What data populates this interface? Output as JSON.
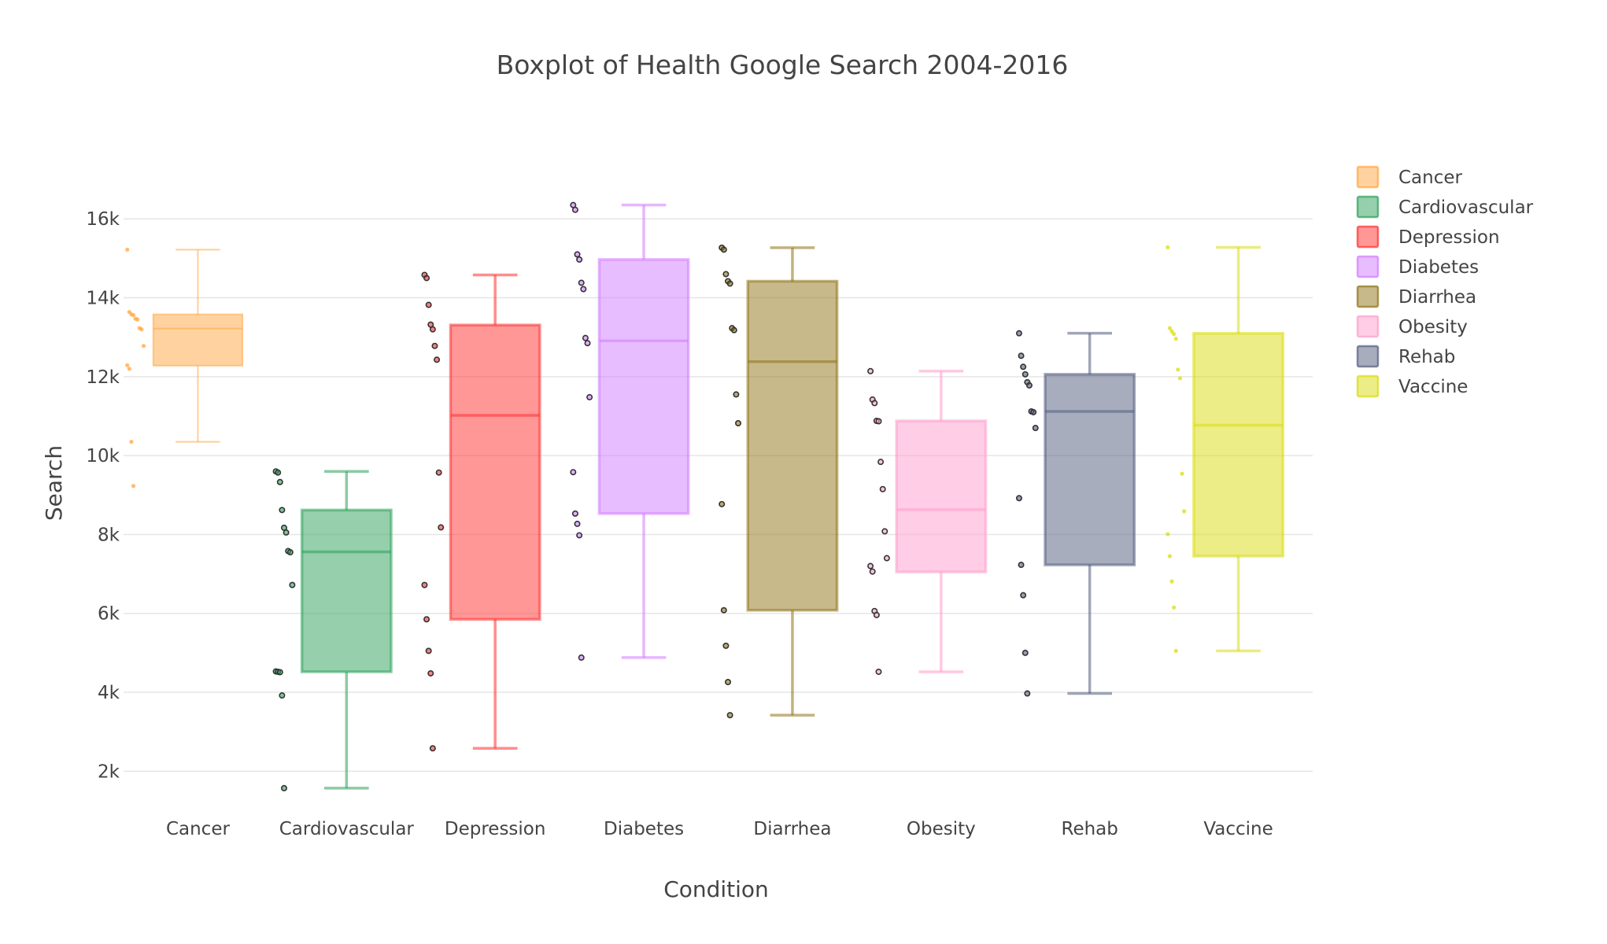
{
  "chart_data": {
    "type": "box",
    "title": "Boxplot of Health Google Search 2004-2016",
    "xlabel": "Condition",
    "ylabel": "Search",
    "ylim": [
      1000,
      17500
    ],
    "yticks": [
      2000,
      4000,
      6000,
      8000,
      10000,
      12000,
      14000,
      16000
    ],
    "ytick_labels": [
      "2k",
      "4k",
      "6k",
      "8k",
      "10k",
      "12k",
      "14k",
      "16k"
    ],
    "grid": true,
    "legend_position": "top-right",
    "categories": [
      "Cancer",
      "Cardiovascular",
      "Depression",
      "Diabetes",
      "Diarrhea",
      "Obesity",
      "Rehab",
      "Vaccine"
    ],
    "series": [
      {
        "name": "Cancer",
        "color": "#FFA640",
        "stats": {
          "min": 10350,
          "q1": 12280,
          "median": 13220,
          "q3": 13580,
          "max": 15220
        },
        "points": [
          15220,
          13640,
          13580,
          13560,
          13470,
          13450,
          13230,
          13200,
          12780,
          12290,
          12200,
          10350,
          9230
        ]
      },
      {
        "name": "Cardiovascular",
        "color": "#2CA05A",
        "stats": {
          "min": 1570,
          "q1": 4520,
          "median": 7560,
          "q3": 8620,
          "max": 9600
        },
        "points": [
          9600,
          9570,
          9330,
          8620,
          8170,
          8050,
          7580,
          7550,
          6720,
          4530,
          4520,
          4510,
          3920,
          1570
        ]
      },
      {
        "name": "Depression",
        "color": "#FF2F2F",
        "stats": {
          "min": 2580,
          "q1": 5850,
          "median": 11020,
          "q3": 13310,
          "max": 14580
        },
        "points": [
          14580,
          14500,
          13820,
          13320,
          13200,
          12780,
          12430,
          9570,
          8180,
          6720,
          5850,
          5050,
          4480,
          2580
        ]
      },
      {
        "name": "Diabetes",
        "color": "#D17BFF",
        "stats": {
          "min": 4880,
          "q1": 8530,
          "median": 12910,
          "q3": 14970,
          "max": 16350
        },
        "points": [
          16350,
          16230,
          15100,
          14970,
          14380,
          14220,
          12980,
          12850,
          11480,
          9580,
          8530,
          8270,
          7980,
          4880
        ]
      },
      {
        "name": "Diarrhea",
        "color": "#8F7316",
        "stats": {
          "min": 3420,
          "q1": 6080,
          "median": 12380,
          "q3": 14420,
          "max": 15270
        },
        "points": [
          15270,
          15220,
          14600,
          14420,
          14360,
          13230,
          13180,
          11550,
          10820,
          8770,
          6080,
          5180,
          4260,
          3420
        ]
      },
      {
        "name": "Obesity",
        "color": "#FF9CCB",
        "stats": {
          "min": 4520,
          "q1": 7050,
          "median": 8630,
          "q3": 10880,
          "max": 12140
        },
        "points": [
          12140,
          11420,
          11330,
          10880,
          10870,
          9840,
          9150,
          8080,
          7400,
          7200,
          7060,
          6060,
          5960,
          4520
        ]
      },
      {
        "name": "Rehab",
        "color": "#525C7D",
        "stats": {
          "min": 3970,
          "q1": 7230,
          "median": 11120,
          "q3": 12060,
          "max": 13100
        },
        "points": [
          13100,
          12530,
          12250,
          12060,
          11860,
          11780,
          11120,
          11100,
          10700,
          8920,
          7230,
          6460,
          5000,
          3970
        ]
      },
      {
        "name": "Vaccine",
        "color": "#D9DC0E",
        "stats": {
          "min": 5050,
          "q1": 7450,
          "median": 10770,
          "q3": 13100,
          "max": 15280
        },
        "points": [
          15280,
          13230,
          13150,
          13080,
          12960,
          12180,
          11960,
          9540,
          8590,
          8010,
          7450,
          6810,
          6150,
          5050
        ]
      }
    ]
  }
}
